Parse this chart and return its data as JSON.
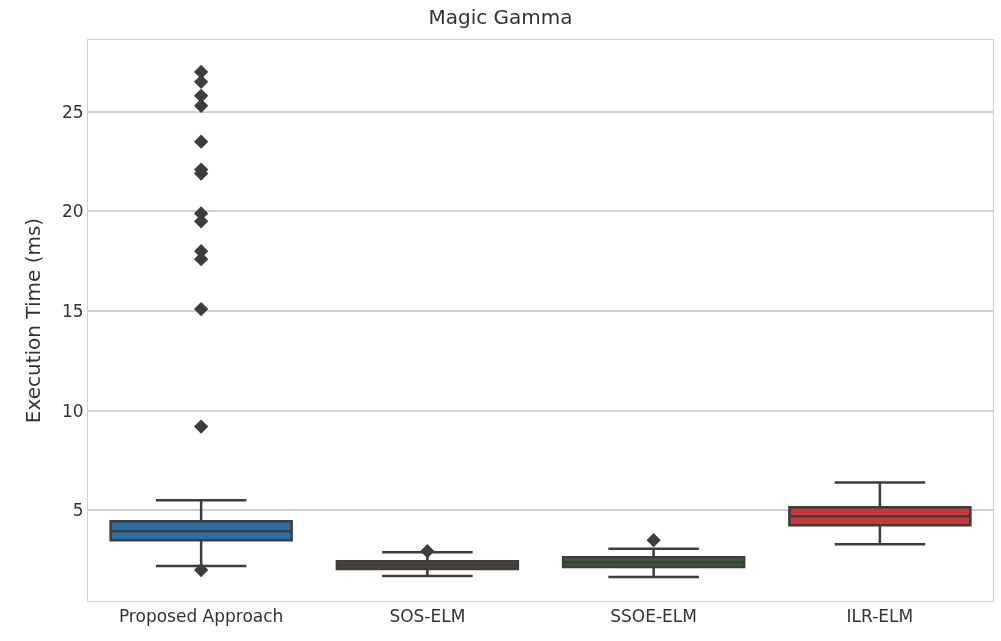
{
  "chart_data": {
    "type": "box",
    "title": "Magic Gamma",
    "ylabel": "Execution Time (ms)",
    "categories": [
      "Proposed Approach",
      "SOS-ELM",
      "SSOE-ELM",
      "ILR-ELM"
    ],
    "colors": [
      "#2a70a8",
      "#5a4232",
      "#3d5c3c",
      "#c8373a"
    ],
    "boxes": [
      {
        "low": 2.2,
        "q1": 3.5,
        "median": 3.95,
        "q3": 4.45,
        "high": 5.5,
        "outliers": [
          27.0,
          26.5,
          25.8,
          25.3,
          23.5,
          22.1,
          21.9,
          19.9,
          19.5,
          18.0,
          17.6,
          15.1,
          9.2,
          2.0
        ]
      },
      {
        "low": 1.7,
        "q1": 2.05,
        "median": 2.25,
        "q3": 2.45,
        "high": 2.9,
        "outliers": [
          2.95
        ]
      },
      {
        "low": 1.65,
        "q1": 2.15,
        "median": 2.4,
        "q3": 2.65,
        "high": 3.07,
        "outliers": [
          3.5
        ]
      },
      {
        "low": 3.3,
        "q1": 4.25,
        "median": 4.7,
        "q3": 5.15,
        "high": 6.4
      }
    ],
    "ylim": [
      0.45,
      28.6
    ],
    "yticks": [
      5,
      10,
      15,
      20,
      25
    ],
    "grid": "y",
    "marker": "diamond"
  }
}
